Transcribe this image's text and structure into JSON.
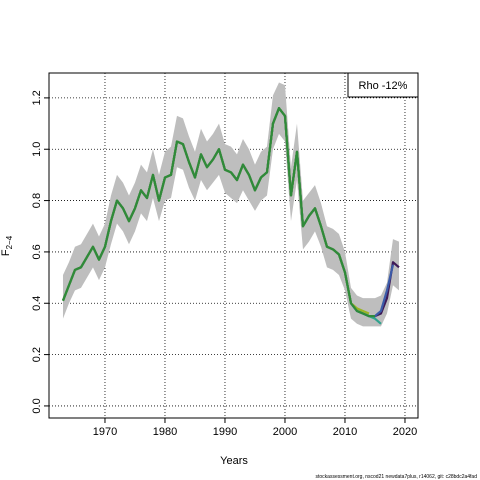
{
  "chart_data": {
    "type": "line",
    "xlabel": "Years",
    "ylabel": "F",
    "ylabel_subscript": "2−4",
    "legend_text": "Rho -12%",
    "legend_position": "top-right",
    "footer": "stockassessment.org, nscod21 newdata7plus, r14062, git: c28bdc2a4fad",
    "grid": true,
    "xlim": [
      1960.67,
      2022.17
    ],
    "ylim": [
      -0.047,
      1.297
    ],
    "xticks": [
      1970,
      1980,
      1990,
      2000,
      2010,
      2020
    ],
    "yticks": [
      {
        "value": 0,
        "label": "0.0"
      },
      0.2,
      0.4,
      0.6,
      0.8,
      {
        "value": 1,
        "label": "1.0"
      },
      1.2
    ],
    "x": [
      1963,
      1964,
      1965,
      1966,
      1967,
      1968,
      1969,
      1970,
      1971,
      1972,
      1973,
      1974,
      1975,
      1976,
      1977,
      1978,
      1979,
      1980,
      1981,
      1982,
      1983,
      1984,
      1985,
      1986,
      1987,
      1988,
      1989,
      1990,
      1991,
      1992,
      1993,
      1994,
      1995,
      1996,
      1997,
      1998,
      1999,
      2000,
      2001,
      2002,
      2003,
      2004,
      2005,
      2006,
      2007,
      2008,
      2009,
      2010,
      2011,
      2012,
      2013,
      2014,
      2015,
      2016,
      2017,
      2018,
      2019
    ],
    "band": {
      "color": "#bebebe",
      "upper": [
        0.51,
        0.56,
        0.62,
        0.63,
        0.67,
        0.71,
        0.66,
        0.71,
        0.82,
        0.9,
        0.87,
        0.82,
        0.87,
        0.94,
        0.91,
        1.0,
        0.9,
        0.99,
        1.01,
        1.13,
        1.12,
        1.05,
        0.99,
        1.08,
        1.03,
        1.06,
        1.1,
        1.02,
        1.01,
        0.98,
        1.04,
        1.0,
        0.94,
        0.99,
        1.01,
        1.21,
        1.26,
        1.25,
        0.93,
        1.1,
        0.8,
        0.83,
        0.86,
        0.79,
        0.7,
        0.69,
        0.67,
        0.6,
        0.46,
        0.43,
        0.42,
        0.42,
        0.42,
        0.43,
        0.48,
        0.65,
        0.64
      ],
      "lower": [
        0.34,
        0.4,
        0.45,
        0.46,
        0.5,
        0.54,
        0.49,
        0.54,
        0.63,
        0.71,
        0.68,
        0.63,
        0.68,
        0.75,
        0.72,
        0.81,
        0.72,
        0.8,
        0.81,
        0.93,
        0.92,
        0.85,
        0.8,
        0.88,
        0.84,
        0.87,
        0.9,
        0.83,
        0.81,
        0.79,
        0.84,
        0.8,
        0.76,
        0.8,
        0.82,
        1.0,
        1.06,
        1.03,
        0.72,
        0.88,
        0.61,
        0.64,
        0.68,
        0.62,
        0.54,
        0.53,
        0.51,
        0.45,
        0.34,
        0.32,
        0.31,
        0.31,
        0.31,
        0.31,
        0.36,
        0.47,
        0.45
      ]
    },
    "series": [
      {
        "color": "#3e1a57",
        "values": [
          0.41,
          0.47,
          0.53,
          0.54,
          0.58,
          0.62,
          0.57,
          0.62,
          0.72,
          0.8,
          0.77,
          0.72,
          0.77,
          0.84,
          0.81,
          0.9,
          0.8,
          0.89,
          0.9,
          1.03,
          1.02,
          0.95,
          0.89,
          0.98,
          0.93,
          0.96,
          1.0,
          0.92,
          0.91,
          0.88,
          0.94,
          0.9,
          0.84,
          0.89,
          0.91,
          1.1,
          1.16,
          1.13,
          0.82,
          0.99,
          0.7,
          0.74,
          0.77,
          0.7,
          0.62,
          0.61,
          0.59,
          0.52,
          0.4,
          0.37,
          0.36,
          0.35,
          0.35,
          0.36,
          0.42,
          0.56,
          0.54
        ]
      },
      {
        "color": "#3b5ba8",
        "values": [
          0.41,
          0.47,
          0.53,
          0.54,
          0.58,
          0.62,
          0.57,
          0.62,
          0.72,
          0.8,
          0.77,
          0.72,
          0.77,
          0.84,
          0.81,
          0.9,
          0.8,
          0.89,
          0.9,
          1.03,
          1.02,
          0.95,
          0.89,
          0.98,
          0.93,
          0.96,
          1.0,
          0.92,
          0.91,
          0.88,
          0.94,
          0.9,
          0.84,
          0.89,
          0.91,
          1.1,
          1.16,
          1.13,
          0.82,
          0.99,
          0.7,
          0.74,
          0.77,
          0.7,
          0.62,
          0.61,
          0.59,
          0.52,
          0.4,
          0.37,
          0.36,
          0.35,
          0.35,
          0.37,
          0.45,
          0.55,
          null
        ]
      },
      {
        "color": "#2fa38e",
        "values": [
          0.41,
          0.47,
          0.53,
          0.54,
          0.58,
          0.62,
          0.57,
          0.62,
          0.72,
          0.8,
          0.77,
          0.72,
          0.77,
          0.84,
          0.81,
          0.9,
          0.8,
          0.89,
          0.9,
          1.03,
          1.02,
          0.95,
          0.89,
          0.98,
          0.93,
          0.96,
          1.0,
          0.92,
          0.91,
          0.88,
          0.94,
          0.9,
          0.84,
          0.89,
          0.91,
          1.1,
          1.16,
          1.13,
          0.82,
          0.99,
          0.7,
          0.74,
          0.77,
          0.7,
          0.62,
          0.61,
          0.59,
          0.52,
          0.4,
          0.37,
          0.36,
          0.35,
          0.34,
          0.32,
          null,
          null,
          null
        ]
      },
      {
        "color": "#9ab526",
        "values": [
          0.41,
          0.47,
          0.53,
          0.54,
          0.58,
          0.62,
          0.57,
          0.62,
          0.72,
          0.8,
          0.77,
          0.72,
          0.77,
          0.84,
          0.81,
          0.9,
          0.8,
          0.89,
          0.9,
          1.03,
          1.02,
          0.95,
          0.89,
          0.98,
          0.93,
          0.96,
          1.0,
          0.92,
          0.91,
          0.88,
          0.94,
          0.9,
          0.84,
          0.89,
          0.91,
          1.1,
          1.16,
          1.13,
          0.82,
          0.99,
          0.7,
          0.74,
          0.77,
          0.7,
          0.62,
          0.61,
          0.59,
          0.52,
          0.4,
          0.38,
          0.37,
          0.36,
          null,
          null,
          null,
          null,
          null
        ]
      },
      {
        "color": "#2f8a3a",
        "values": [
          0.41,
          0.47,
          0.53,
          0.54,
          0.58,
          0.62,
          0.57,
          0.62,
          0.72,
          0.8,
          0.77,
          0.72,
          0.77,
          0.84,
          0.81,
          0.9,
          0.8,
          0.89,
          0.9,
          1.03,
          1.02,
          0.95,
          0.89,
          0.98,
          0.93,
          0.96,
          1.0,
          0.92,
          0.91,
          0.88,
          0.94,
          0.9,
          0.84,
          0.89,
          0.91,
          1.1,
          1.16,
          1.13,
          0.82,
          0.99,
          0.7,
          0.74,
          0.77,
          0.7,
          0.62,
          0.61,
          0.59,
          0.52,
          0.4,
          0.37,
          0.36,
          0.35,
          0.35,
          null,
          null,
          null,
          null
        ]
      }
    ]
  }
}
